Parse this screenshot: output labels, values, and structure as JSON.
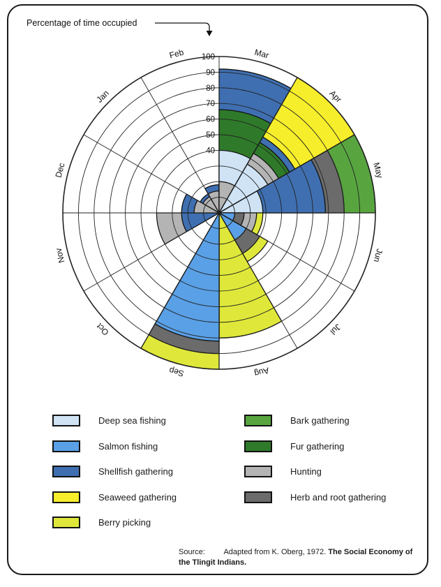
{
  "chart_data": {
    "type": "polar-area",
    "title": "Percentage of time occupied",
    "radial_axis": {
      "min": 0,
      "max": 100,
      "ticks": [
        40,
        50,
        60,
        70,
        80,
        90,
        100
      ]
    },
    "months": [
      "Jan",
      "Feb",
      "Mar",
      "Apr",
      "May",
      "Jun",
      "Jul",
      "Aug",
      "Sep",
      "Oct",
      "Nov",
      "Dec"
    ],
    "series": [
      {
        "name": "Deep sea fishing",
        "color": "#cfe3f5",
        "values": [
          0,
          0,
          40,
          36,
          28,
          0,
          0,
          0,
          0,
          0,
          0,
          0
        ]
      },
      {
        "name": "Salmon fishing",
        "color": "#5aa0e6",
        "values": [
          0,
          0,
          0,
          0,
          0,
          10,
          20,
          0,
          82,
          0,
          0,
          0
        ]
      },
      {
        "name": "Shellfish gathering",
        "color": "#3f6fb0",
        "values": [
          14,
          18,
          92,
          56,
          68,
          0,
          0,
          0,
          0,
          0,
          24,
          24
        ]
      },
      {
        "name": "Seaweed gathering",
        "color": "#f6ee2a",
        "values": [
          0,
          0,
          0,
          100,
          0,
          0,
          0,
          0,
          0,
          0,
          0,
          0
        ]
      },
      {
        "name": "Berry picking",
        "color": "#dfe83a",
        "values": [
          0,
          0,
          0,
          0,
          0,
          28,
          36,
          80,
          100,
          0,
          0,
          0
        ]
      },
      {
        "name": "Bark gathering",
        "color": "#58a540",
        "values": [
          0,
          0,
          0,
          0,
          100,
          0,
          0,
          0,
          0,
          0,
          0,
          0
        ]
      },
      {
        "name": "Fur gathering",
        "color": "#2f7a2a",
        "values": [
          0,
          0,
          66,
          52,
          0,
          0,
          0,
          0,
          0,
          0,
          0,
          0
        ]
      },
      {
        "name": "Hunting",
        "color": "#b4b4b4",
        "values": [
          12,
          14,
          20,
          44,
          0,
          24,
          0,
          0,
          0,
          0,
          40,
          16
        ]
      },
      {
        "name": "Herb and root gathering",
        "color": "#6b6b6b",
        "values": [
          0,
          0,
          0,
          0,
          80,
          16,
          30,
          0,
          90,
          0,
          0,
          0
        ]
      }
    ]
  },
  "legend_left": [
    {
      "label": "Deep sea fishing",
      "color": "#cfe3f5"
    },
    {
      "label": "Salmon fishing",
      "color": "#5aa0e6"
    },
    {
      "label": "Shellfish gathering",
      "color": "#3f6fb0"
    },
    {
      "label": "Seaweed gathering",
      "color": "#f6ee2a"
    },
    {
      "label": "Berry picking",
      "color": "#dfe83a"
    }
  ],
  "legend_right": [
    {
      "label": "Bark gathering",
      "color": "#58a540"
    },
    {
      "label": "Fur gathering",
      "color": "#2f7a2a"
    },
    {
      "label": "Hunting",
      "color": "#b4b4b4"
    },
    {
      "label": "Herb and root gathering",
      "color": "#6b6b6b"
    }
  ],
  "source": {
    "prefix": "Source:",
    "text": "Adapted from K. Oberg, 1972.",
    "title": "The Social Economy of the Tlingit Indians."
  }
}
